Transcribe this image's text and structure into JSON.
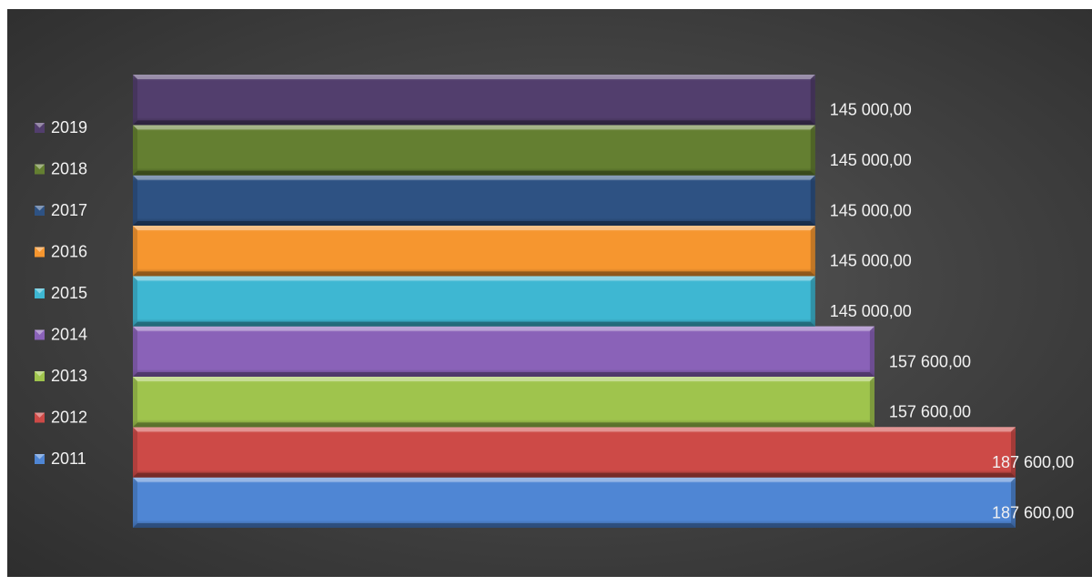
{
  "chart_data": {
    "type": "bar",
    "orientation": "horizontal",
    "stacking": "none",
    "title": "",
    "xlabel": "",
    "ylabel": "",
    "grid": false,
    "legend_placement": "left",
    "xlim": [
      0,
      187600
    ],
    "series": [
      {
        "name": "2011",
        "value": 187600,
        "label": "187 600,00",
        "color": "#4f86d4"
      },
      {
        "name": "2012",
        "value": 187600,
        "label": "187 600,00",
        "color": "#cd4a47"
      },
      {
        "name": "2013",
        "value": 157600,
        "label": "157 600,00",
        "color": "#9fc44d"
      },
      {
        "name": "2014",
        "value": 157600,
        "label": "157 600,00",
        "color": "#8a62b8"
      },
      {
        "name": "2015",
        "value": 145000,
        "label": "145 000,00",
        "color": "#3eb7d2"
      },
      {
        "name": "2016",
        "value": 145000,
        "label": "145 000,00",
        "color": "#f6962f"
      },
      {
        "name": "2017",
        "value": 145000,
        "label": "145 000,00",
        "color": "#2e5283"
      },
      {
        "name": "2018",
        "value": 145000,
        "label": "145 000,00",
        "color": "#647f31"
      },
      {
        "name": "2019",
        "value": 145000,
        "label": "145 000,00",
        "color": "#523e6d"
      }
    ]
  }
}
